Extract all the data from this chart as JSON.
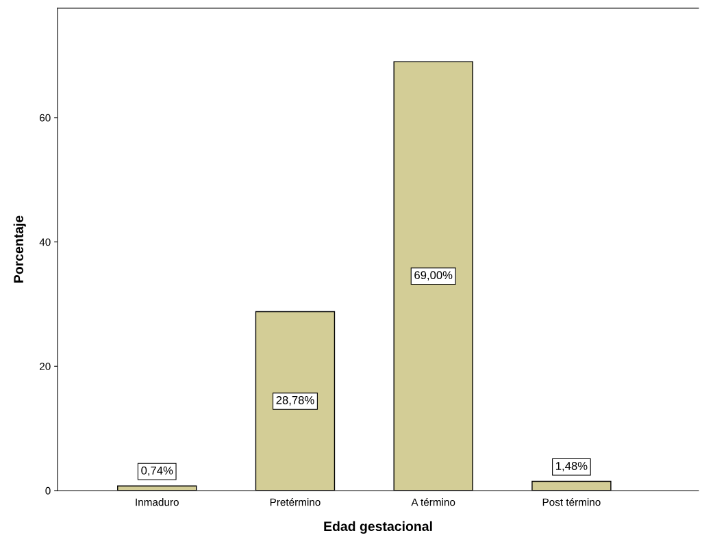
{
  "chart_data": {
    "type": "bar",
    "xlabel": "Edad gestacional",
    "ylabel": "Porcentaje",
    "categories": [
      "Inmaduro",
      "Pretérmino",
      "A término",
      "Post término"
    ],
    "values": [
      0.74,
      28.78,
      69.0,
      1.48
    ],
    "value_labels": [
      "0,74%",
      "28,78%",
      "69,00%",
      "1,48%"
    ],
    "color": "#d3cd96",
    "ylim": [
      0,
      77.6
    ],
    "yticks": [
      0,
      20,
      40,
      60
    ],
    "grid": false,
    "legend": false
  }
}
